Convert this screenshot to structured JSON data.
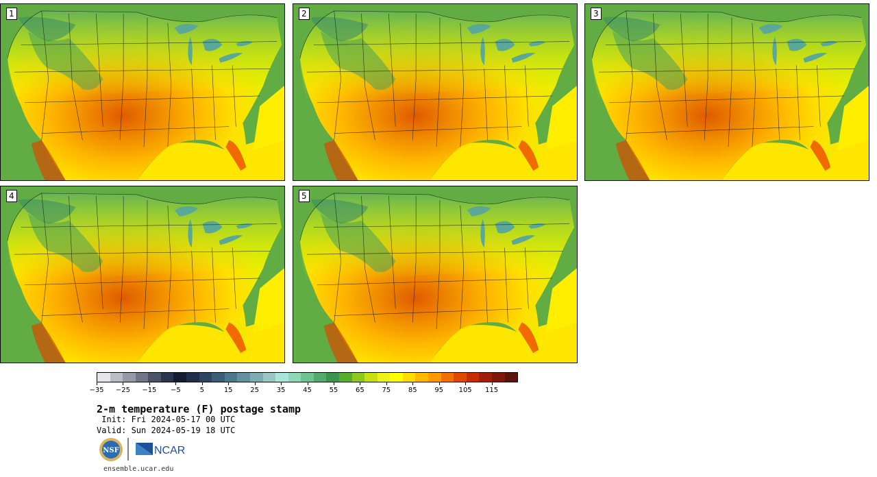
{
  "panels": [
    {
      "label": "1"
    },
    {
      "label": "2"
    },
    {
      "label": "3"
    },
    {
      "label": "4"
    },
    {
      "label": "5"
    }
  ],
  "colorbar": {
    "colors": [
      "#e6e6e8",
      "#bcbdc4",
      "#9699a6",
      "#707587",
      "#4b5268",
      "#2c3550",
      "#141d33",
      "#1f2f4a",
      "#2b4663",
      "#3a5e79",
      "#4d778d",
      "#6391a0",
      "#7eacb2",
      "#9ac7c3",
      "#a9e6da",
      "#8ed8b5",
      "#6fc391",
      "#52aa6b",
      "#3d944c",
      "#5aad2a",
      "#8ec71f",
      "#c6e012",
      "#eef215",
      "#ffff00",
      "#ffdd00",
      "#ffba00",
      "#ff9a00",
      "#f07000",
      "#df4a00",
      "#c42d00",
      "#a01f08",
      "#7e190c",
      "#5a160c"
    ],
    "tick_labels": [
      "−35",
      "−25",
      "−15",
      "−5",
      "5",
      "15",
      "25",
      "35",
      "45",
      "55",
      "65",
      "75",
      "85",
      "95",
      "105",
      "115"
    ]
  },
  "title": "2-m temperature (F) postage stamp",
  "init": " Init: Fri 2024-05-17 00 UTC",
  "valid": "Valid: Sun 2024-05-19 18 UTC",
  "logos": {
    "nsf": "NSF",
    "ncar": "NCAR"
  },
  "url": "ensemble.ucar.edu"
}
